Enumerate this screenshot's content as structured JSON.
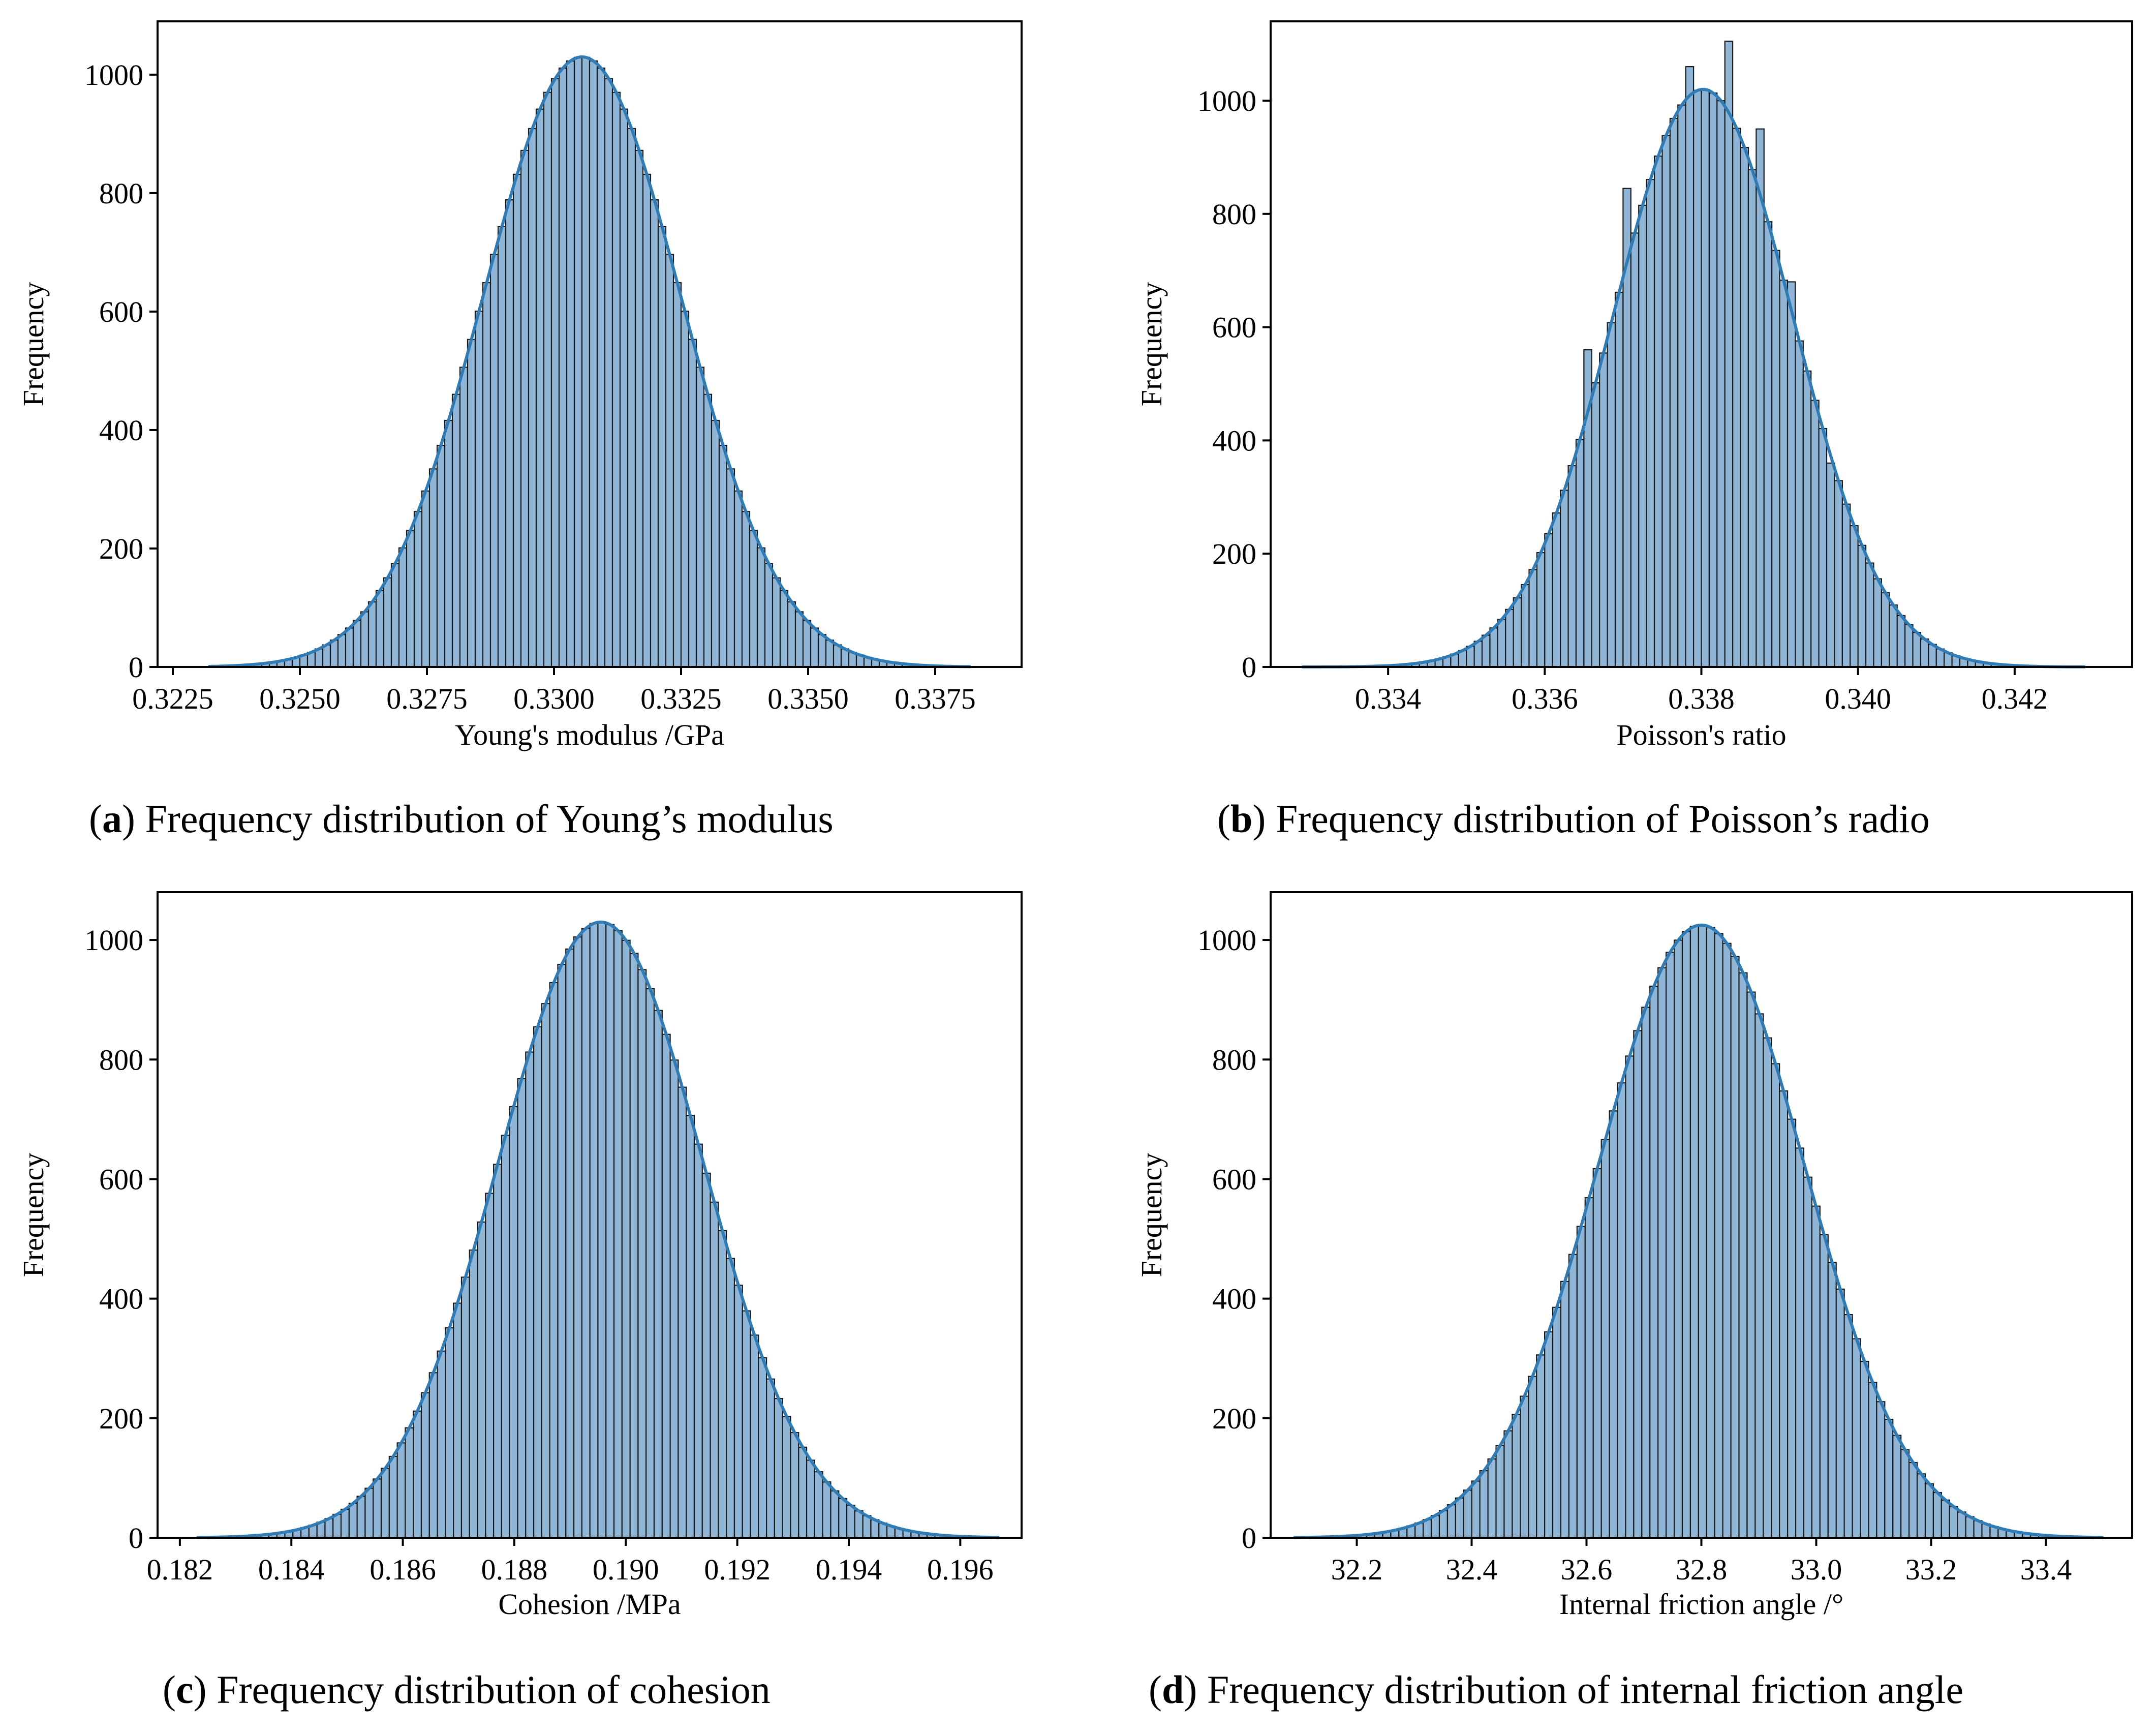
{
  "colors": {
    "bar_fill": "#8fb6d6",
    "bar_edge": "#1a1a1a",
    "kde_line": "#2f7bb5"
  },
  "chart_data": [
    {
      "type": "histogram",
      "panel": "a",
      "caption_letter": "a",
      "caption_text": ") Frequency distribution of Young’s modulus",
      "xlabel": "Young's modulus /GPa",
      "ylabel": "Frequency",
      "xlim": [
        0.3222,
        0.3392
      ],
      "ylim": [
        0,
        1090
      ],
      "xticks": [
        0.3225,
        0.325,
        0.3275,
        0.33,
        0.3325,
        0.335,
        0.3375
      ],
      "xtick_labels": [
        "0.3225",
        "0.3250",
        "0.3275",
        "0.3300",
        "0.3325",
        "0.3350",
        "0.3375"
      ],
      "yticks": [
        0,
        200,
        400,
        600,
        800,
        1000
      ],
      "ytick_labels": [
        "0",
        "200",
        "400",
        "600",
        "800",
        "1000"
      ],
      "mean": 0.33055,
      "std": 0.00195,
      "peak": 1030,
      "data_range": [
        0.3232,
        0.3382
      ],
      "bins": 100,
      "spikes": []
    },
    {
      "type": "histogram",
      "panel": "b",
      "caption_letter": "b",
      "caption_text": ") Frequency distribution of Poisson’s radio",
      "xlabel": "Poisson's ratio",
      "ylabel": "Frequency",
      "xlim": [
        0.3325,
        0.3435
      ],
      "ylim": [
        0,
        1140
      ],
      "xticks": [
        0.334,
        0.336,
        0.338,
        0.34,
        0.342
      ],
      "xtick_labels": [
        "0.334",
        "0.336",
        "0.338",
        "0.340",
        "0.342"
      ],
      "yticks": [
        0,
        200,
        400,
        600,
        800,
        1000
      ],
      "ytick_labels": [
        "0",
        "200",
        "400",
        "600",
        "800",
        "1000"
      ],
      "mean": 0.33802,
      "std": 0.00115,
      "peak": 1020,
      "data_range": [
        0.3329,
        0.3429
      ],
      "bins": 100,
      "spikes": [
        [
          0.33705,
          845
        ],
        [
          0.33785,
          1060
        ],
        [
          0.33835,
          1105
        ],
        [
          0.33875,
          950
        ],
        [
          0.33915,
          680
        ],
        [
          0.33965,
          360
        ],
        [
          0.33655,
          560
        ]
      ]
    },
    {
      "type": "histogram",
      "panel": "c",
      "caption_letter": "c",
      "caption_text": ") Frequency distribution of cohesion",
      "xlabel": "Cohesion /MPa",
      "ylabel": "Frequency",
      "xlim": [
        0.1816,
        0.1971
      ],
      "ylim": [
        0,
        1080
      ],
      "xticks": [
        0.182,
        0.184,
        0.186,
        0.188,
        0.19,
        0.192,
        0.194,
        0.196
      ],
      "xtick_labels": [
        "0.182",
        "0.184",
        "0.186",
        "0.188",
        "0.190",
        "0.192",
        "0.194",
        "0.196"
      ],
      "yticks": [
        0,
        200,
        400,
        600,
        800,
        1000
      ],
      "ytick_labels": [
        "0",
        "200",
        "400",
        "600",
        "800",
        "1000"
      ],
      "mean": 0.18955,
      "std": 0.00185,
      "peak": 1030,
      "data_range": [
        0.1823,
        0.1967
      ],
      "bins": 100,
      "spikes": []
    },
    {
      "type": "histogram",
      "panel": "d",
      "caption_letter": "d",
      "caption_text": ") Frequency distribution of internal friction angle",
      "xlabel": "Internal friction angle /°",
      "ylabel": "Frequency",
      "xlim": [
        32.05,
        33.55
      ],
      "ylim": [
        0,
        1080
      ],
      "xticks": [
        32.2,
        32.4,
        32.6,
        32.8,
        33.0,
        33.2,
        33.4
      ],
      "xtick_labels": [
        "32.2",
        "32.4",
        "32.6",
        "32.8",
        "33.0",
        "33.2",
        "33.4"
      ],
      "yticks": [
        0,
        200,
        400,
        600,
        800,
        1000
      ],
      "ytick_labels": [
        "0",
        "200",
        "400",
        "600",
        "800",
        "1000"
      ],
      "mean": 32.8,
      "std": 0.18,
      "peak": 1025,
      "data_range": [
        32.09,
        33.5
      ],
      "bins": 100,
      "spikes": []
    }
  ]
}
